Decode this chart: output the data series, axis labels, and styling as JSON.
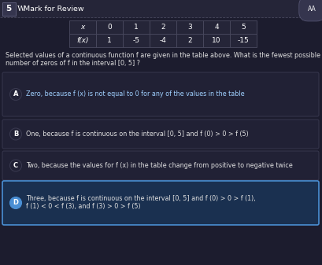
{
  "title_num": "5",
  "title_label": "Mark for Review",
  "table_headers": [
    "x",
    "0",
    "1",
    "2",
    "3",
    "4",
    "5"
  ],
  "table_row_label": "f(x)",
  "table_values": [
    "1",
    "-5",
    "-4",
    "2",
    "10",
    "-15"
  ],
  "question_line1": "Selected values of a continuous function f are given in the table above. What is the fewest possible",
  "question_line2": "number of zeros of f in the interval [0, 5] ?",
  "options": [
    {
      "letter": "A",
      "text": "Zero, because f (x) is not equal to 0 for any of the values in the table",
      "selected": false,
      "highlighted": true,
      "text2": ""
    },
    {
      "letter": "B",
      "text": "One, because f is continuous on the interval [0, 5] and f (0) > 0 > f (5)",
      "selected": false,
      "highlighted": false,
      "text2": ""
    },
    {
      "letter": "C",
      "text": "Two, because the values for f (x) in the table change from positive to negative twice",
      "selected": false,
      "highlighted": false,
      "text2": ""
    },
    {
      "letter": "D",
      "text": "Three, because f is continuous on the interval [0, 5] and f (0) > 0 > f (1),",
      "selected": true,
      "highlighted": false,
      "text2": "f (1) < 0 < f (3), and f (3) > 0 > f (5)"
    }
  ],
  "bg_color": "#1c1c2e",
  "header_bar_color": "#252538",
  "selected_option_bg": "#1a3050",
  "selected_option_border": "#4a8fd4",
  "option_bg": "#212135",
  "option_border": "#38384e",
  "table_bg": "#252538",
  "table_border": "#4a4a60",
  "text_color": "#e0e0e0",
  "highlight_text_color": "#a0d0ff"
}
